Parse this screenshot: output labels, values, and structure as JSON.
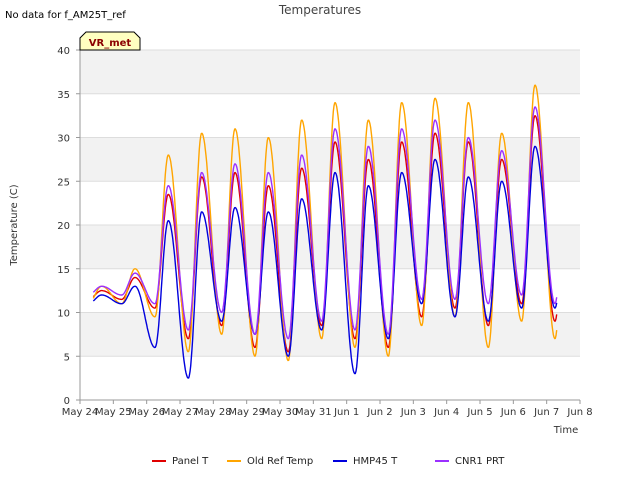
{
  "header": {
    "no_data_note": "No data for f_AM25T_ref",
    "badge": "VR_met"
  },
  "chart_data": {
    "type": "line",
    "title": "Temperatures",
    "xlabel": "Time",
    "ylabel": "Temperature (C)",
    "x_tick_labels": [
      "May 24",
      "May 25",
      "May 26",
      "May 27",
      "May 28",
      "May 29",
      "May 30",
      "May 31",
      "Jun 1",
      "Jun 2",
      "Jun 3",
      "Jun 4",
      "Jun 5",
      "Jun 6",
      "Jun 7",
      "Jun 8"
    ],
    "xlim_days": [
      0,
      15
    ],
    "ylim": [
      0,
      40
    ],
    "y_ticks": [
      0,
      5,
      10,
      15,
      20,
      25,
      30,
      35,
      40
    ],
    "grid": true,
    "banded_background": true,
    "legend_position": "bottom",
    "colors": {
      "Panel T": "#e00000",
      "Old Ref Temp": "#ffa500",
      "HMP45 T": "#0000dd",
      "CNR1 PRT": "#9b30ff"
    },
    "day_x": [
      0,
      1,
      2,
      3,
      4,
      5,
      6,
      7,
      8,
      9,
      10,
      11,
      12,
      13,
      14,
      15
    ],
    "series": [
      {
        "name": "Panel T",
        "min": [
          null,
          11.5,
          10.5,
          7,
          8.5,
          6,
          5.5,
          8.5,
          7,
          6,
          9.5,
          10.5,
          8.5,
          11,
          9
        ],
        "max": [
          12.5,
          14.0,
          23.5,
          25.5,
          26.0,
          24.5,
          26.5,
          29.5,
          27.5,
          29.5,
          30.5,
          29.5,
          27.5,
          32.5,
          29.5
        ]
      },
      {
        "name": "Old Ref Temp",
        "min": [
          null,
          11,
          9.5,
          5.5,
          7.5,
          5,
          4.5,
          7,
          6,
          5,
          8.5,
          9.5,
          6,
          9,
          7
        ],
        "max": [
          13.0,
          15.0,
          28.0,
          30.5,
          31.0,
          30.0,
          32.0,
          34.0,
          32.0,
          34.0,
          34.5,
          34.0,
          30.5,
          36.0,
          33.0
        ]
      },
      {
        "name": "HMP45 T",
        "min": [
          null,
          11,
          6,
          2.5,
          9,
          7.5,
          5,
          8,
          3,
          7,
          11,
          9.5,
          9,
          10.5,
          10.5
        ],
        "max": [
          12.0,
          13.0,
          20.5,
          21.5,
          22.0,
          21.5,
          23.0,
          26.0,
          24.5,
          26.0,
          27.5,
          25.5,
          25.0,
          29.0,
          26.5
        ]
      },
      {
        "name": "CNR1 PRT",
        "min": [
          null,
          12,
          11,
          8,
          10,
          7.5,
          7,
          9,
          8,
          7.5,
          11.5,
          11.5,
          11,
          12,
          11
        ],
        "max": [
          13.0,
          14.5,
          24.5,
          26.0,
          27.0,
          26.0,
          28.0,
          31.0,
          29.0,
          31.0,
          32.0,
          30.0,
          28.5,
          33.5,
          30.5
        ]
      }
    ]
  }
}
